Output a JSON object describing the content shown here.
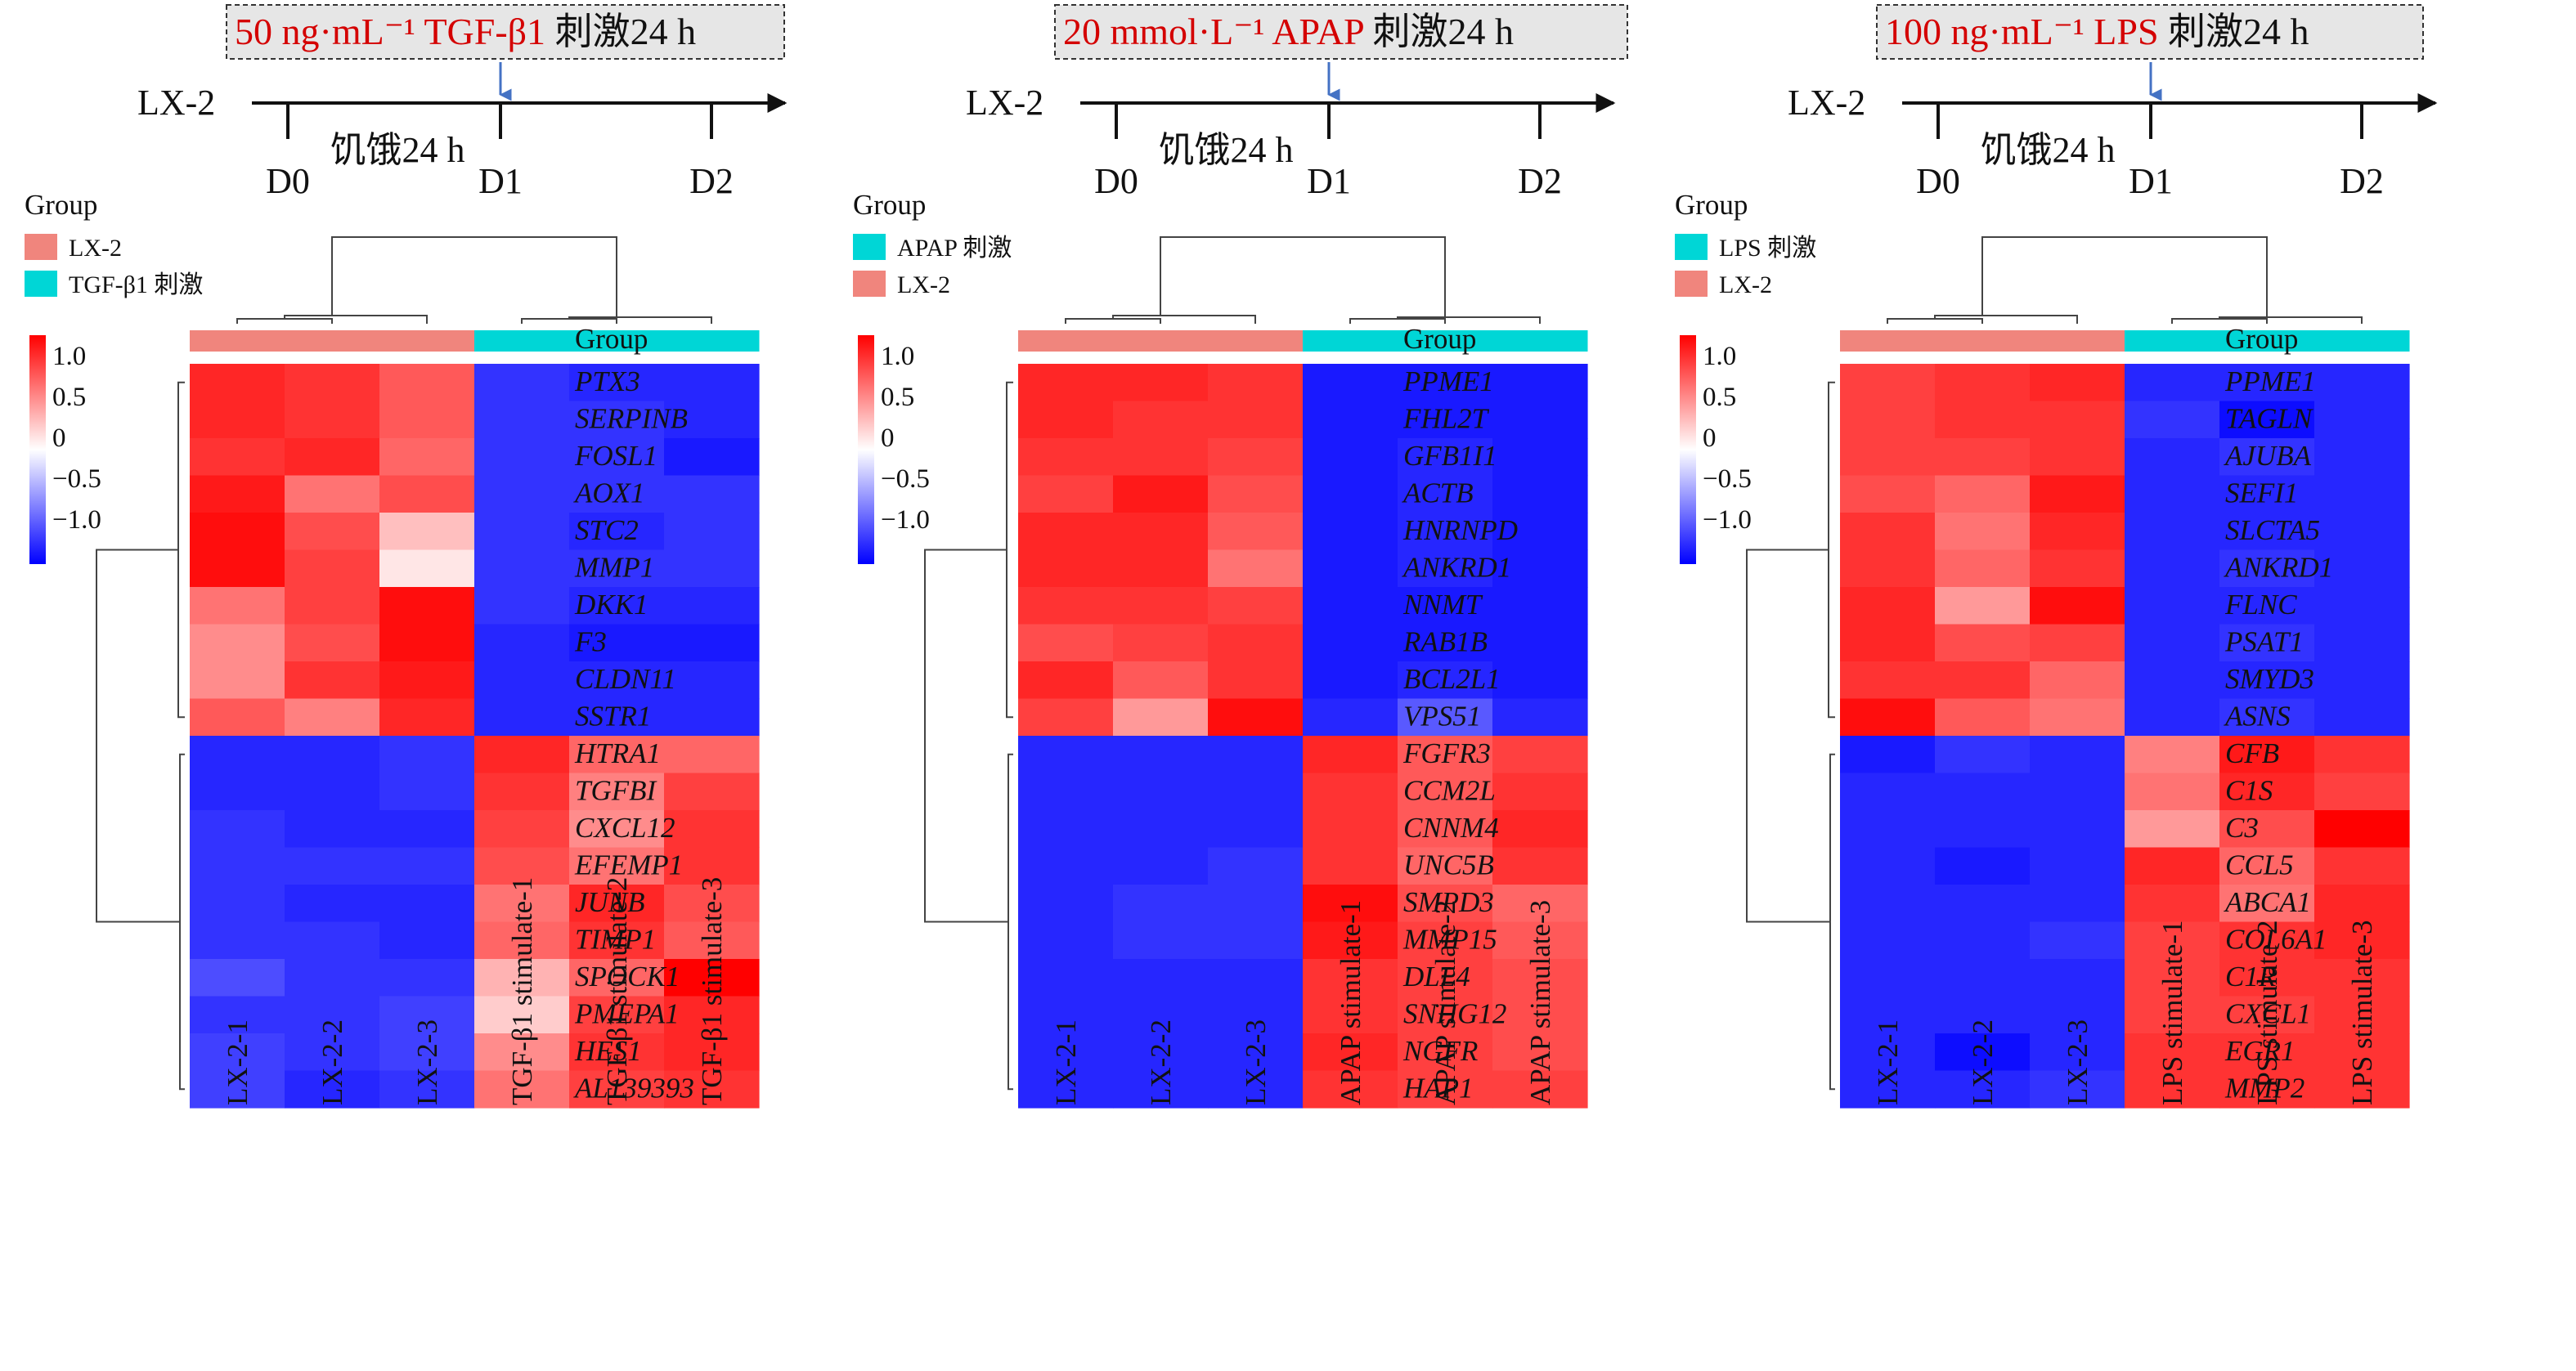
{
  "colors": {
    "lx2": "#f0857d",
    "stim": "#00d6d6",
    "high": "#ff0000",
    "mid": "#ffffff",
    "low": "#0000ff",
    "stim_red": "#d40000"
  },
  "panels": [
    {
      "stimulus_red": "50 ng·mL⁻¹ TGF-β1",
      "stimulus_black": " 刺激24 h",
      "cell_line": "LX-2",
      "starve": "饥饿24 h",
      "days": [
        "D0",
        "D1",
        "D2"
      ],
      "legend_title": "Group",
      "legend_items": [
        {
          "label": "LX-2",
          "color": "#f0857d"
        },
        {
          "label": "TGF-β1 刺激",
          "color": "#00d6d6"
        }
      ],
      "scale_labels": [
        "1.0",
        "0.5",
        "0",
        "−0.5",
        "−1.0"
      ],
      "group_label": "Group"
    },
    {
      "stimulus_red": "20 mmol·L⁻¹ APAP",
      "stimulus_black": " 刺激24 h",
      "cell_line": "LX-2",
      "starve": "饥饿24 h",
      "days": [
        "D0",
        "D1",
        "D2"
      ],
      "legend_title": "Group",
      "legend_items": [
        {
          "label": "APAP 刺激",
          "color": "#00d6d6"
        },
        {
          "label": "LX-2",
          "color": "#f0857d"
        }
      ],
      "scale_labels": [
        "1.0",
        "0.5",
        "0",
        "−0.5",
        "−1.0"
      ],
      "group_label": "Group"
    },
    {
      "stimulus_red": "100 ng·mL⁻¹ LPS",
      "stimulus_black": " 刺激24 h",
      "cell_line": "LX-2",
      "starve": "饥饿24 h",
      "days": [
        "D0",
        "D1",
        "D2"
      ],
      "legend_title": "Group",
      "legend_items": [
        {
          "label": "LPS 刺激",
          "color": "#00d6d6"
        },
        {
          "label": "LX-2",
          "color": "#f0857d"
        }
      ],
      "scale_labels": [
        "1.0",
        "0.5",
        "0",
        "−0.5",
        "−1.0"
      ],
      "group_label": "Group"
    }
  ],
  "chart_data": [
    {
      "type": "heatmap",
      "value_range": [
        -1.0,
        1.0
      ],
      "columns": [
        "LX-2-1",
        "LX-2-2",
        "LX-2-3",
        "TGF-β1 stimulate-1",
        "TGF-β1 stimulate-2",
        "TGF-β1 stimulate-3"
      ],
      "column_groups": [
        "LX-2",
        "LX-2",
        "LX-2",
        "TGF-β1 刺激",
        "TGF-β1 刺激",
        "TGF-β1 刺激"
      ],
      "rows": [
        "PTX3",
        "SERPINB",
        "FOSL1",
        "AOX1",
        "STC2",
        "MMP1",
        "DKK1",
        "F3",
        "CLDN11",
        "SSTR1",
        "HTRA1",
        "TGFBI",
        "CXCL12",
        "EFEMP1",
        "JUNB",
        "TIMP1",
        "SPOCK1",
        "PMEPA1",
        "HES1",
        "AL139393"
      ],
      "values": [
        [
          0.85,
          0.8,
          0.65,
          -0.8,
          -0.85,
          -0.85
        ],
        [
          0.85,
          0.8,
          0.65,
          -0.8,
          -0.8,
          -0.85
        ],
        [
          0.8,
          0.85,
          0.6,
          -0.8,
          -0.8,
          -0.9
        ],
        [
          0.9,
          0.55,
          0.7,
          -0.8,
          -0.8,
          -0.8
        ],
        [
          0.95,
          0.7,
          0.25,
          -0.8,
          -0.85,
          -0.8
        ],
        [
          0.95,
          0.75,
          0.1,
          -0.8,
          -0.8,
          -0.8
        ],
        [
          0.55,
          0.75,
          0.95,
          -0.8,
          -0.85,
          -0.85
        ],
        [
          0.45,
          0.7,
          0.95,
          -0.85,
          -0.9,
          -0.9
        ],
        [
          0.45,
          0.8,
          0.9,
          -0.85,
          -0.85,
          -0.85
        ],
        [
          0.65,
          0.5,
          0.85,
          -0.85,
          -0.85,
          -0.85
        ],
        [
          -0.85,
          -0.85,
          -0.8,
          0.85,
          0.6,
          0.6
        ],
        [
          -0.85,
          -0.85,
          -0.8,
          0.8,
          0.5,
          0.75
        ],
        [
          -0.8,
          -0.85,
          -0.85,
          0.75,
          0.45,
          0.8
        ],
        [
          -0.8,
          -0.8,
          -0.8,
          0.7,
          0.55,
          0.8
        ],
        [
          -0.8,
          -0.85,
          -0.85,
          0.55,
          0.85,
          0.7
        ],
        [
          -0.8,
          -0.8,
          -0.85,
          0.6,
          0.8,
          0.65
        ],
        [
          -0.7,
          -0.8,
          -0.8,
          0.3,
          0.6,
          1.0
        ],
        [
          -0.8,
          -0.8,
          -0.75,
          0.2,
          0.75,
          0.85
        ],
        [
          -0.75,
          -0.8,
          -0.75,
          0.45,
          0.8,
          0.85
        ],
        [
          -0.75,
          -0.85,
          -0.8,
          0.55,
          0.75,
          0.8
        ]
      ]
    },
    {
      "type": "heatmap",
      "value_range": [
        -1.0,
        1.0
      ],
      "columns": [
        "LX-2-1",
        "LX-2-2",
        "LX-2-3",
        "APAP stimulate-1",
        "APAP stimulate-2",
        "APAP stimulate-3"
      ],
      "column_groups": [
        "LX-2",
        "LX-2",
        "LX-2",
        "APAP 刺激",
        "APAP 刺激",
        "APAP 刺激"
      ],
      "rows": [
        "PPME1",
        "FHL2T",
        "GFB1I1",
        "ACTB",
        "HNRNPD",
        "ANKRD1",
        "NNMT",
        "RAB1B",
        "BCL2L1",
        "VPS51",
        "FGFR3",
        "CCM2L",
        "CNNM4",
        "UNC5B",
        "SMPD3",
        "MMP15",
        "DLL4",
        "SNHG12",
        "NGFR",
        "HAP1"
      ],
      "values": [
        [
          0.85,
          0.85,
          0.8,
          -0.9,
          -0.9,
          -0.9
        ],
        [
          0.85,
          0.8,
          0.8,
          -0.9,
          -0.9,
          -0.9
        ],
        [
          0.8,
          0.8,
          0.75,
          -0.9,
          -0.85,
          -0.9
        ],
        [
          0.75,
          0.9,
          0.7,
          -0.9,
          -0.85,
          -0.9
        ],
        [
          0.85,
          0.85,
          0.65,
          -0.9,
          -0.85,
          -0.9
        ],
        [
          0.85,
          0.85,
          0.55,
          -0.9,
          -0.85,
          -0.9
        ],
        [
          0.8,
          0.8,
          0.75,
          -0.9,
          -0.9,
          -0.9
        ],
        [
          0.7,
          0.75,
          0.8,
          -0.9,
          -0.9,
          -0.9
        ],
        [
          0.85,
          0.65,
          0.8,
          -0.9,
          -0.85,
          -0.9
        ],
        [
          0.75,
          0.4,
          0.95,
          -0.85,
          -0.65,
          -0.85
        ],
        [
          -0.85,
          -0.85,
          -0.85,
          0.85,
          0.65,
          0.75
        ],
        [
          -0.85,
          -0.85,
          -0.85,
          0.8,
          0.65,
          0.8
        ],
        [
          -0.85,
          -0.85,
          -0.85,
          0.8,
          0.65,
          0.85
        ],
        [
          -0.85,
          -0.85,
          -0.8,
          0.8,
          0.6,
          0.8
        ],
        [
          -0.85,
          -0.8,
          -0.8,
          0.95,
          0.7,
          0.6
        ],
        [
          -0.85,
          -0.8,
          -0.8,
          0.9,
          0.75,
          0.65
        ],
        [
          -0.85,
          -0.85,
          -0.85,
          0.8,
          0.75,
          0.7
        ],
        [
          -0.85,
          -0.85,
          -0.85,
          0.8,
          0.75,
          0.7
        ],
        [
          -0.85,
          -0.85,
          -0.85,
          0.85,
          0.75,
          0.7
        ],
        [
          -0.85,
          -0.85,
          -0.85,
          0.8,
          0.75,
          0.75
        ]
      ]
    },
    {
      "type": "heatmap",
      "value_range": [
        -1.0,
        1.0
      ],
      "columns": [
        "LX-2-1",
        "LX-2-2",
        "LX-2-3",
        "LPS stimulate-1",
        "LPS stimulate-2",
        "LPS stimulate-3"
      ],
      "column_groups": [
        "LX-2",
        "LX-2",
        "LX-2",
        "LPS 刺激",
        "LPS 刺激",
        "LPS 刺激"
      ],
      "rows": [
        "PPME1",
        "TAGLN",
        "AJUBA",
        "SEFI1",
        "SLCTA5",
        "ANKRD1",
        "FLNC",
        "PSAT1",
        "SMYD3",
        "ASNS",
        "CFB",
        "C1S",
        "C3",
        "CCL5",
        "ABCA1",
        "COL6A1",
        "C1R",
        "CXCL1",
        "EGR1",
        "MMP2"
      ],
      "values": [
        [
          0.75,
          0.8,
          0.85,
          -0.85,
          -0.85,
          -0.85
        ],
        [
          0.75,
          0.8,
          0.8,
          -0.8,
          -0.95,
          -0.85
        ],
        [
          0.75,
          0.75,
          0.8,
          -0.85,
          -0.8,
          -0.85
        ],
        [
          0.7,
          0.6,
          0.9,
          -0.85,
          -0.85,
          -0.85
        ],
        [
          0.8,
          0.55,
          0.85,
          -0.85,
          -0.85,
          -0.85
        ],
        [
          0.8,
          0.6,
          0.8,
          -0.85,
          -0.8,
          -0.85
        ],
        [
          0.85,
          0.4,
          0.95,
          -0.85,
          -0.85,
          -0.85
        ],
        [
          0.85,
          0.7,
          0.75,
          -0.85,
          -0.8,
          -0.85
        ],
        [
          0.8,
          0.8,
          0.6,
          -0.85,
          -0.85,
          -0.85
        ],
        [
          0.95,
          0.65,
          0.55,
          -0.85,
          -0.8,
          -0.85
        ],
        [
          -0.9,
          -0.8,
          -0.85,
          0.5,
          0.9,
          0.8
        ],
        [
          -0.85,
          -0.85,
          -0.85,
          0.55,
          0.85,
          0.75
        ],
        [
          -0.85,
          -0.85,
          -0.85,
          0.4,
          0.7,
          1.0
        ],
        [
          -0.85,
          -0.9,
          -0.85,
          0.85,
          0.6,
          0.8
        ],
        [
          -0.85,
          -0.85,
          -0.85,
          0.8,
          0.55,
          0.85
        ],
        [
          -0.85,
          -0.85,
          -0.8,
          0.75,
          0.8,
          0.85
        ],
        [
          -0.85,
          -0.85,
          -0.85,
          0.75,
          0.8,
          0.8
        ],
        [
          -0.85,
          -0.85,
          -0.85,
          0.75,
          0.75,
          0.8
        ],
        [
          -0.85,
          -0.95,
          -0.85,
          0.8,
          0.8,
          0.8
        ],
        [
          -0.85,
          -0.85,
          -0.8,
          0.8,
          0.8,
          0.8
        ]
      ]
    }
  ]
}
